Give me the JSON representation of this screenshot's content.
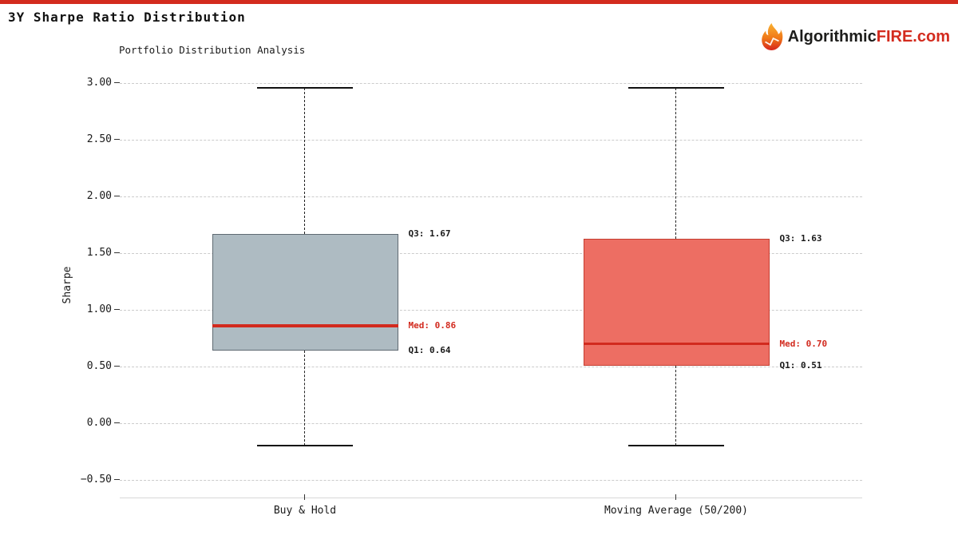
{
  "header": {
    "title": "3Y Sharpe Ratio Distribution",
    "accent_color": "#d32b1e",
    "brand": {
      "icon": "flame-icon",
      "dark": "Algorithmic",
      "red": "FIRE.com",
      "dark_color": "#1d1d1b",
      "red_color": "#d32b1e"
    }
  },
  "chart_data": {
    "type": "boxplot",
    "title": "Portfolio Distribution Analysis",
    "ylabel": "Sharpe",
    "ylim": [
      -0.5,
      3.0
    ],
    "grid": true,
    "legend": "none",
    "whisker_style": "dashed",
    "median_color": "#d22a1e",
    "yticks": [
      {
        "value": 3.0,
        "label": "3.00"
      },
      {
        "value": 2.5,
        "label": "2.50"
      },
      {
        "value": 2.0,
        "label": "2.00"
      },
      {
        "value": 1.5,
        "label": "1.50"
      },
      {
        "value": 1.0,
        "label": "1.00"
      },
      {
        "value": 0.5,
        "label": "0.50"
      },
      {
        "value": 0.0,
        "label": "0.00"
      },
      {
        "value": -0.5,
        "label": "−0.50"
      }
    ],
    "series": [
      {
        "label": "Buy & Hold",
        "q1": 0.64,
        "median": 0.86,
        "q3": 1.67,
        "whisker_low": -0.2,
        "whisker_high": 2.96,
        "fill_color": "#aebbc2",
        "edge_color": "#5f6a72",
        "annotations": {
          "q3": "Q3: 1.67",
          "med": "Med: 0.86",
          "q1": "Q1: 0.64"
        }
      },
      {
        "label": "Moving Average (50/200)",
        "q1": 0.51,
        "median": 0.7,
        "q3": 1.63,
        "whisker_low": -0.2,
        "whisker_high": 2.96,
        "fill_color": "#ed6e63",
        "edge_color": "#c43d30",
        "annotations": {
          "q3": "Q3: 1.63",
          "med": "Med: 0.70",
          "q1": "Q1: 0.51"
        }
      }
    ]
  }
}
